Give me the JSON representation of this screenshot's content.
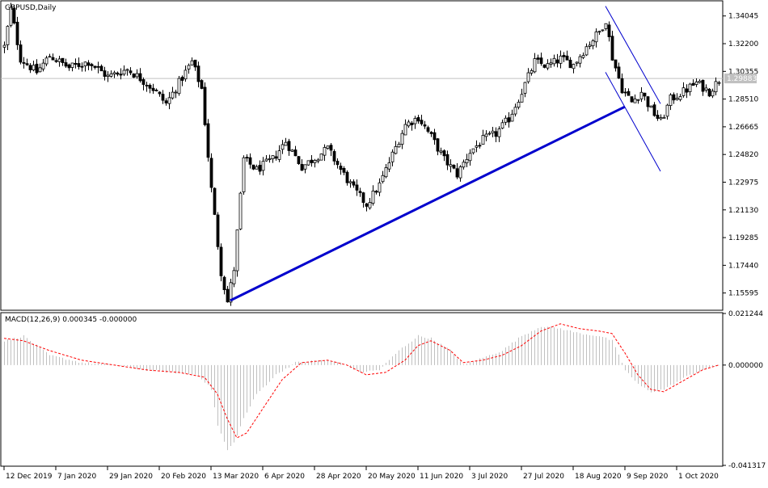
{
  "chart_data": [
    {
      "type": "candlestick",
      "title": "GBPUSD,Daily",
      "y_ticks": [
        "1.34045",
        "1.32200",
        "1.30355",
        "1.28510",
        "1.26665",
        "1.24820",
        "1.22975",
        "1.21130",
        "1.19285",
        "1.17440",
        "1.15595"
      ],
      "ylim": [
        1.145,
        1.35
      ],
      "current_price": "1.29883",
      "current_price_value": 1.29883,
      "x_ticks": [
        "12 Dec 2019",
        "7 Jan 2020",
        "29 Jan 2020",
        "20 Feb 2020",
        "13 Mar 2020",
        "6 Apr 2020",
        "28 Apr 2020",
        "20 May 2020",
        "11 Jun 2020",
        "3 Jul 2020",
        "27 Jul 2020",
        "18 Aug 2020",
        "9 Sep 2020",
        "1 Oct 2020"
      ],
      "x_tick_bar_index": [
        0,
        16,
        32,
        48,
        64,
        80,
        96,
        112,
        128,
        144,
        160,
        176,
        192,
        208
      ],
      "bar_count": 222,
      "price_keypoints": [
        [
          0,
          1.32
        ],
        [
          2,
          1.345
        ],
        [
          5,
          1.312
        ],
        [
          10,
          1.303
        ],
        [
          14,
          1.314
        ],
        [
          20,
          1.306
        ],
        [
          26,
          1.31
        ],
        [
          32,
          1.3
        ],
        [
          38,
          1.305
        ],
        [
          42,
          1.299
        ],
        [
          46,
          1.292
        ],
        [
          50,
          1.282
        ],
        [
          54,
          1.296
        ],
        [
          58,
          1.31
        ],
        [
          61,
          1.292
        ],
        [
          64,
          1.225
        ],
        [
          67,
          1.17
        ],
        [
          69,
          1.15
        ],
        [
          71,
          1.172
        ],
        [
          74,
          1.245
        ],
        [
          78,
          1.238
        ],
        [
          83,
          1.245
        ],
        [
          87,
          1.257
        ],
        [
          92,
          1.24
        ],
        [
          96,
          1.246
        ],
        [
          100,
          1.252
        ],
        [
          104,
          1.238
        ],
        [
          108,
          1.225
        ],
        [
          112,
          1.215
        ],
        [
          116,
          1.228
        ],
        [
          120,
          1.248
        ],
        [
          124,
          1.268
        ],
        [
          128,
          1.273
        ],
        [
          132,
          1.26
        ],
        [
          136,
          1.245
        ],
        [
          140,
          1.235
        ],
        [
          144,
          1.25
        ],
        [
          148,
          1.258
        ],
        [
          152,
          1.262
        ],
        [
          156,
          1.272
        ],
        [
          160,
          1.29
        ],
        [
          164,
          1.31
        ],
        [
          168,
          1.307
        ],
        [
          172,
          1.312
        ],
        [
          176,
          1.308
        ],
        [
          180,
          1.32
        ],
        [
          184,
          1.33
        ],
        [
          186,
          1.338
        ],
        [
          188,
          1.313
        ],
        [
          191,
          1.292
        ],
        [
          194,
          1.283
        ],
        [
          197,
          1.29
        ],
        [
          200,
          1.278
        ],
        [
          203,
          1.27
        ],
        [
          206,
          1.285
        ],
        [
          210,
          1.29
        ],
        [
          214,
          1.296
        ],
        [
          218,
          1.29
        ],
        [
          221,
          1.298
        ]
      ],
      "trendlines": [
        {
          "from": [
            70,
            1.151
          ],
          "to": [
            192,
            1.28
          ],
          "color": "#0000cd",
          "style": "thick"
        },
        {
          "from": [
            186,
            1.347
          ],
          "to": [
            203,
            1.282
          ],
          "color": "#0000cd",
          "style": "thin"
        },
        {
          "from": [
            186,
            1.303
          ],
          "to": [
            203,
            1.237
          ],
          "color": "#0000cd",
          "style": "thin"
        }
      ]
    },
    {
      "type": "macd",
      "title": "MACD(12,26,9) 0.000345 -0.000000",
      "y_ticks": [
        "0.021244",
        "0.000000",
        "-0.041317"
      ],
      "ylim": [
        -0.041317,
        0.021244
      ],
      "histogram_keypoints": [
        [
          0,
          0.01
        ],
        [
          6,
          0.012
        ],
        [
          14,
          0.004
        ],
        [
          24,
          0.001
        ],
        [
          34,
          0.0
        ],
        [
          44,
          -0.002
        ],
        [
          52,
          -0.003
        ],
        [
          60,
          -0.004
        ],
        [
          64,
          -0.01
        ],
        [
          66,
          -0.025
        ],
        [
          69,
          -0.035
        ],
        [
          71,
          -0.032
        ],
        [
          74,
          -0.022
        ],
        [
          78,
          -0.012
        ],
        [
          84,
          -0.004
        ],
        [
          90,
          0.001
        ],
        [
          98,
          0.002
        ],
        [
          104,
          0.001
        ],
        [
          110,
          -0.003
        ],
        [
          116,
          -0.002
        ],
        [
          122,
          0.006
        ],
        [
          128,
          0.012
        ],
        [
          132,
          0.011
        ],
        [
          138,
          0.006
        ],
        [
          142,
          0.0
        ],
        [
          148,
          0.003
        ],
        [
          154,
          0.006
        ],
        [
          160,
          0.012
        ],
        [
          166,
          0.016
        ],
        [
          172,
          0.015
        ],
        [
          178,
          0.013
        ],
        [
          184,
          0.012
        ],
        [
          188,
          0.01
        ],
        [
          192,
          -0.002
        ],
        [
          196,
          -0.008
        ],
        [
          200,
          -0.011
        ],
        [
          204,
          -0.01
        ],
        [
          208,
          -0.007
        ],
        [
          212,
          -0.004
        ],
        [
          216,
          -0.002
        ],
        [
          221,
          0.0
        ]
      ],
      "signal_keypoints": [
        [
          0,
          0.011
        ],
        [
          6,
          0.01
        ],
        [
          14,
          0.006
        ],
        [
          24,
          0.002
        ],
        [
          34,
          0.0
        ],
        [
          44,
          -0.002
        ],
        [
          54,
          -0.003
        ],
        [
          62,
          -0.005
        ],
        [
          66,
          -0.012
        ],
        [
          69,
          -0.022
        ],
        [
          72,
          -0.03
        ],
        [
          75,
          -0.028
        ],
        [
          80,
          -0.018
        ],
        [
          86,
          -0.006
        ],
        [
          92,
          0.001
        ],
        [
          100,
          0.002
        ],
        [
          106,
          0.0
        ],
        [
          112,
          -0.004
        ],
        [
          118,
          -0.003
        ],
        [
          124,
          0.002
        ],
        [
          128,
          0.008
        ],
        [
          132,
          0.01
        ],
        [
          138,
          0.006
        ],
        [
          142,
          0.001
        ],
        [
          148,
          0.002
        ],
        [
          154,
          0.004
        ],
        [
          160,
          0.008
        ],
        [
          166,
          0.014
        ],
        [
          172,
          0.017
        ],
        [
          178,
          0.015
        ],
        [
          184,
          0.014
        ],
        [
          188,
          0.013
        ],
        [
          192,
          0.005
        ],
        [
          196,
          -0.004
        ],
        [
          200,
          -0.01
        ],
        [
          204,
          -0.011
        ],
        [
          208,
          -0.008
        ],
        [
          212,
          -0.005
        ],
        [
          216,
          -0.002
        ],
        [
          221,
          0.0
        ]
      ],
      "colors": {
        "histogram": "#c0c0c0",
        "signal": "#ff0000"
      }
    }
  ]
}
